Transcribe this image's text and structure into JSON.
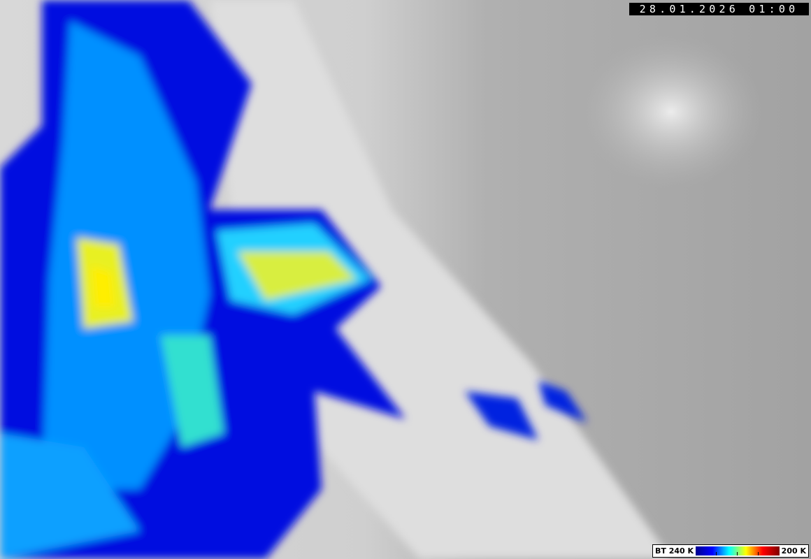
{
  "image_type": "satellite brightness temperature overlay",
  "timestamp": "28.01.2026 01:00",
  "legend": {
    "min_label": "BT 240 K",
    "max_label": "200 K",
    "colors": [
      "#00008f",
      "#0000ff",
      "#00ffff",
      "#ffff00",
      "#ff0000",
      "#800000"
    ]
  },
  "colors": {
    "background_gray": "#a9a9a9",
    "cloud_white": "#e6e6e6"
  }
}
